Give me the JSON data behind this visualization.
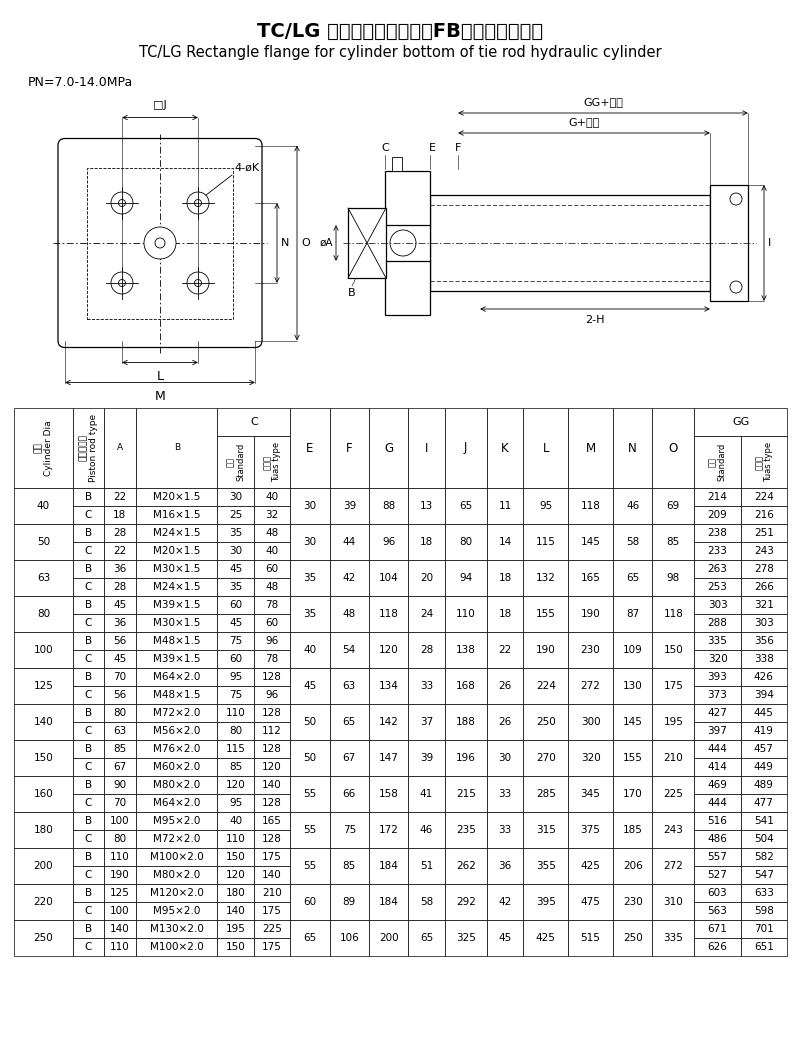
{
  "title_cn": "TC/LG 缸底长方形法兰型（FB）拉杆式液压缸",
  "title_en": "TC/LG Rectangle flange for cylinder bottom of tie rod hydraulic cylinder",
  "pn": "PN=7.0-14.0MPa",
  "rows": [
    {
      "dia": "40",
      "type": "B",
      "A": 22,
      "B": "M20×1.5",
      "C_std": 30,
      "C_lng": 40,
      "E": 30,
      "F": 39,
      "G": 88,
      "I": 13,
      "J": 65,
      "K": 11,
      "L": 95,
      "M": 118,
      "N": 46,
      "O": 69,
      "GG_std": 214,
      "GG_lng": 224
    },
    {
      "dia": "40",
      "type": "C",
      "A": 18,
      "B": "M16×1.5",
      "C_std": 25,
      "C_lng": 32,
      "E": null,
      "F": null,
      "G": null,
      "I": null,
      "J": null,
      "K": null,
      "L": null,
      "M": null,
      "N": null,
      "O": null,
      "GG_std": 209,
      "GG_lng": 216
    },
    {
      "dia": "50",
      "type": "B",
      "A": 28,
      "B": "M24×1.5",
      "C_std": 35,
      "C_lng": 48,
      "E": 30,
      "F": 44,
      "G": 96,
      "I": 18,
      "J": 80,
      "K": 14,
      "L": 115,
      "M": 145,
      "N": 58,
      "O": 85,
      "GG_std": 238,
      "GG_lng": 251
    },
    {
      "dia": "50",
      "type": "C",
      "A": 22,
      "B": "M20×1.5",
      "C_std": 30,
      "C_lng": 40,
      "E": null,
      "F": null,
      "G": null,
      "I": null,
      "J": null,
      "K": null,
      "L": null,
      "M": null,
      "N": null,
      "O": null,
      "GG_std": 233,
      "GG_lng": 243
    },
    {
      "dia": "63",
      "type": "B",
      "A": 36,
      "B": "M30×1.5",
      "C_std": 45,
      "C_lng": 60,
      "E": 35,
      "F": 42,
      "G": 104,
      "I": 20,
      "J": 94,
      "K": 18,
      "L": 132,
      "M": 165,
      "N": 65,
      "O": 98,
      "GG_std": 263,
      "GG_lng": 278
    },
    {
      "dia": "63",
      "type": "C",
      "A": 28,
      "B": "M24×1.5",
      "C_std": 35,
      "C_lng": 48,
      "E": null,
      "F": null,
      "G": null,
      "I": null,
      "J": null,
      "K": null,
      "L": null,
      "M": null,
      "N": null,
      "O": null,
      "GG_std": 253,
      "GG_lng": 266
    },
    {
      "dia": "80",
      "type": "B",
      "A": 45,
      "B": "M39×1.5",
      "C_std": 60,
      "C_lng": 78,
      "E": 35,
      "F": 48,
      "G": 118,
      "I": 24,
      "J": 110,
      "K": 18,
      "L": 155,
      "M": 190,
      "N": 87,
      "O": 118,
      "GG_std": 303,
      "GG_lng": 321
    },
    {
      "dia": "80",
      "type": "C",
      "A": 36,
      "B": "M30×1.5",
      "C_std": 45,
      "C_lng": 60,
      "E": null,
      "F": null,
      "G": null,
      "I": null,
      "J": null,
      "K": null,
      "L": null,
      "M": null,
      "N": null,
      "O": null,
      "GG_std": 288,
      "GG_lng": 303
    },
    {
      "dia": "100",
      "type": "B",
      "A": 56,
      "B": "M48×1.5",
      "C_std": 75,
      "C_lng": 96,
      "E": 40,
      "F": 54,
      "G": 120,
      "I": 28,
      "J": 138,
      "K": 22,
      "L": 190,
      "M": 230,
      "N": 109,
      "O": 150,
      "GG_std": 335,
      "GG_lng": 356
    },
    {
      "dia": "100",
      "type": "C",
      "A": 45,
      "B": "M39×1.5",
      "C_std": 60,
      "C_lng": 78,
      "E": null,
      "F": null,
      "G": null,
      "I": null,
      "J": null,
      "K": null,
      "L": null,
      "M": null,
      "N": null,
      "O": null,
      "GG_std": 320,
      "GG_lng": 338
    },
    {
      "dia": "125",
      "type": "B",
      "A": 70,
      "B": "M64×2.0",
      "C_std": 95,
      "C_lng": 128,
      "E": 45,
      "F": 63,
      "G": 134,
      "I": 33,
      "J": 168,
      "K": 26,
      "L": 224,
      "M": 272,
      "N": 130,
      "O": 175,
      "GG_std": 393,
      "GG_lng": 426
    },
    {
      "dia": "125",
      "type": "C",
      "A": 56,
      "B": "M48×1.5",
      "C_std": 75,
      "C_lng": 96,
      "E": null,
      "F": null,
      "G": null,
      "I": null,
      "J": null,
      "K": null,
      "L": null,
      "M": null,
      "N": null,
      "O": null,
      "GG_std": 373,
      "GG_lng": 394
    },
    {
      "dia": "140",
      "type": "B",
      "A": 80,
      "B": "M72×2.0",
      "C_std": 110,
      "C_lng": 128,
      "E": 50,
      "F": 65,
      "G": 142,
      "I": 37,
      "J": 188,
      "K": 26,
      "L": 250,
      "M": 300,
      "N": 145,
      "O": 195,
      "GG_std": 427,
      "GG_lng": 445
    },
    {
      "dia": "140",
      "type": "C",
      "A": 63,
      "B": "M56×2.0",
      "C_std": 80,
      "C_lng": 112,
      "E": null,
      "F": null,
      "G": null,
      "I": null,
      "J": null,
      "K": null,
      "L": null,
      "M": null,
      "N": null,
      "O": null,
      "GG_std": 397,
      "GG_lng": 419
    },
    {
      "dia": "150",
      "type": "B",
      "A": 85,
      "B": "M76×2.0",
      "C_std": 115,
      "C_lng": 128,
      "E": 50,
      "F": 67,
      "G": 147,
      "I": 39,
      "J": 196,
      "K": 30,
      "L": 270,
      "M": 320,
      "N": 155,
      "O": 210,
      "GG_std": 444,
      "GG_lng": 457
    },
    {
      "dia": "150",
      "type": "C",
      "A": 67,
      "B": "M60×2.0",
      "C_std": 85,
      "C_lng": 120,
      "E": null,
      "F": null,
      "G": null,
      "I": null,
      "J": null,
      "K": null,
      "L": null,
      "M": null,
      "N": null,
      "O": null,
      "GG_std": 414,
      "GG_lng": 449
    },
    {
      "dia": "160",
      "type": "B",
      "A": 90,
      "B": "M80×2.0",
      "C_std": 120,
      "C_lng": 140,
      "E": 55,
      "F": 66,
      "G": 158,
      "I": 41,
      "J": 215,
      "K": 33,
      "L": 285,
      "M": 345,
      "N": 170,
      "O": 225,
      "GG_std": 469,
      "GG_lng": 489
    },
    {
      "dia": "160",
      "type": "C",
      "A": 70,
      "B": "M64×2.0",
      "C_std": 95,
      "C_lng": 128,
      "E": null,
      "F": null,
      "G": null,
      "I": null,
      "J": null,
      "K": null,
      "L": null,
      "M": null,
      "N": null,
      "O": null,
      "GG_std": 444,
      "GG_lng": 477
    },
    {
      "dia": "180",
      "type": "B",
      "A": 100,
      "B": "M95×2.0",
      "C_std": 40,
      "C_lng": 165,
      "E": 55,
      "F": 75,
      "G": 172,
      "I": 46,
      "J": 235,
      "K": 33,
      "L": 315,
      "M": 375,
      "N": 185,
      "O": 243,
      "GG_std": 516,
      "GG_lng": 541
    },
    {
      "dia": "180",
      "type": "C",
      "A": 80,
      "B": "M72×2.0",
      "C_std": 110,
      "C_lng": 128,
      "E": null,
      "F": null,
      "G": null,
      "I": null,
      "J": null,
      "K": null,
      "L": null,
      "M": null,
      "N": null,
      "O": null,
      "GG_std": 486,
      "GG_lng": 504
    },
    {
      "dia": "200",
      "type": "B",
      "A": 110,
      "B": "M100×2.0",
      "C_std": 150,
      "C_lng": 175,
      "E": 55,
      "F": 85,
      "G": 184,
      "I": 51,
      "J": 262,
      "K": 36,
      "L": 355,
      "M": 425,
      "N": 206,
      "O": 272,
      "GG_std": 557,
      "GG_lng": 582
    },
    {
      "dia": "200",
      "type": "C",
      "A": 190,
      "B": "M80×2.0",
      "C_std": 120,
      "C_lng": 140,
      "E": null,
      "F": null,
      "G": null,
      "I": null,
      "J": null,
      "K": null,
      "L": null,
      "M": null,
      "N": null,
      "O": null,
      "GG_std": 527,
      "GG_lng": 547
    },
    {
      "dia": "220",
      "type": "B",
      "A": 125,
      "B": "M120×2.0",
      "C_std": 180,
      "C_lng": 210,
      "E": 60,
      "F": 89,
      "G": 184,
      "I": 58,
      "J": 292,
      "K": 42,
      "L": 395,
      "M": 475,
      "N": 230,
      "O": 310,
      "GG_std": 603,
      "GG_lng": 633
    },
    {
      "dia": "220",
      "type": "C",
      "A": 100,
      "B": "M95×2.0",
      "C_std": 140,
      "C_lng": 175,
      "E": null,
      "F": null,
      "G": null,
      "I": null,
      "J": null,
      "K": null,
      "L": null,
      "M": null,
      "N": null,
      "O": null,
      "GG_std": 563,
      "GG_lng": 598
    },
    {
      "dia": "250",
      "type": "B",
      "A": 140,
      "B": "M130×2.0",
      "C_std": 195,
      "C_lng": 225,
      "E": 65,
      "F": 106,
      "G": 200,
      "I": 65,
      "J": 325,
      "K": 45,
      "L": 425,
      "M": 515,
      "N": 250,
      "O": 335,
      "GG_std": 671,
      "GG_lng": 701
    },
    {
      "dia": "250",
      "type": "C",
      "A": 110,
      "B": "M100×2.0",
      "C_std": 150,
      "C_lng": 175,
      "E": null,
      "F": null,
      "G": null,
      "I": null,
      "J": null,
      "K": null,
      "L": null,
      "M": null,
      "N": null,
      "O": null,
      "GG_std": 626,
      "GG_lng": 651
    }
  ]
}
